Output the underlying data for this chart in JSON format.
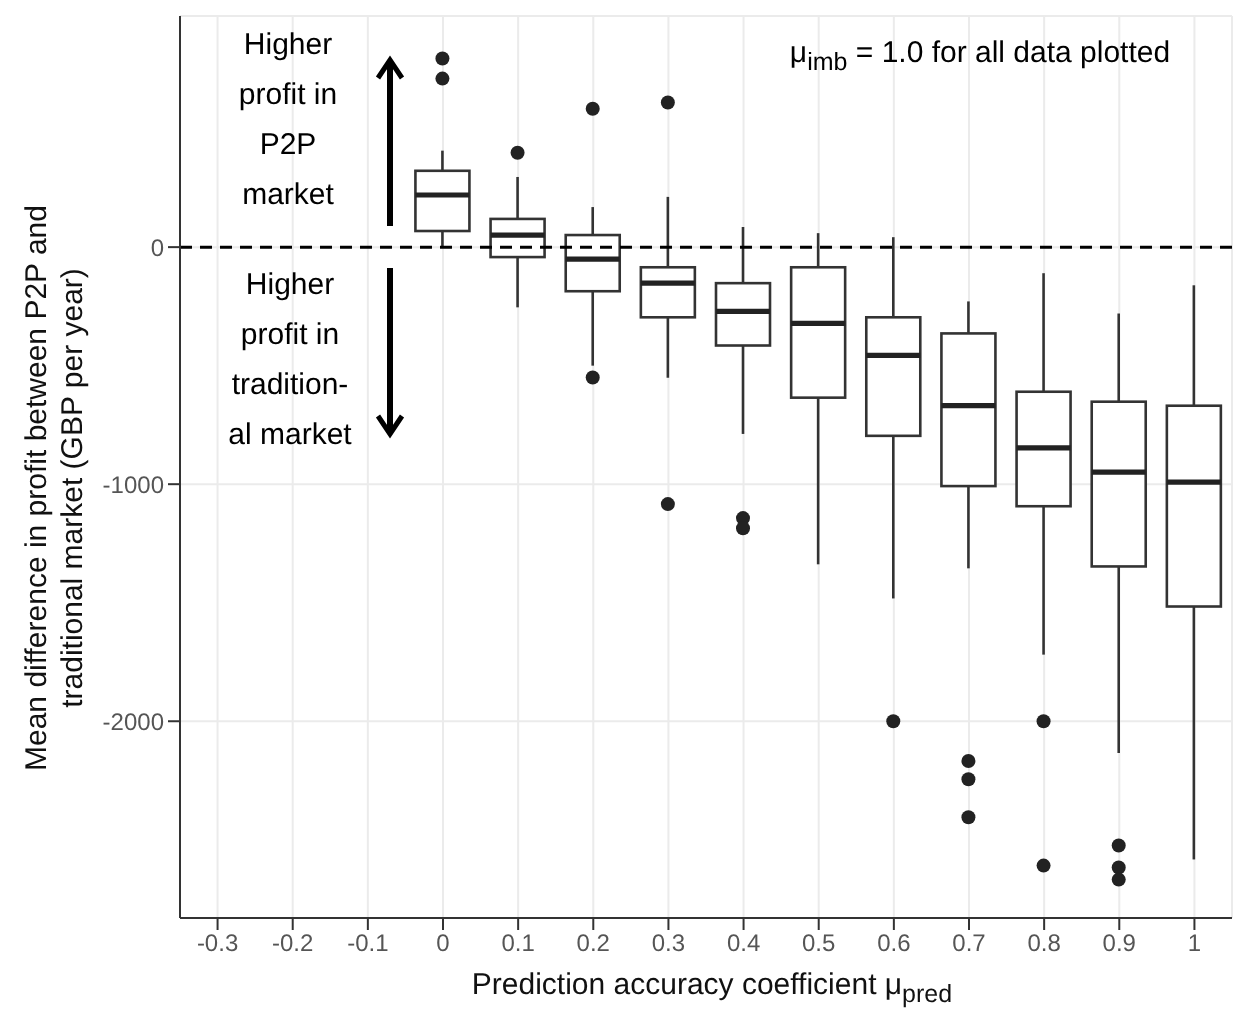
{
  "chart_data": {
    "type": "box",
    "xlabel": "Prediction accuracy coefficient μ$_{pred}$",
    "ylabel": "Mean difference in profit between P2P and traditional market (GBP per year)",
    "categories": [
      "-0.3",
      "-0.2",
      "-0.1",
      "0",
      "0.1",
      "0.2",
      "0.3",
      "0.4",
      "0.5",
      "0.6",
      "0.7",
      "0.8",
      "0.9",
      "1"
    ],
    "boxes": [
      null,
      null,
      null,
      {
        "low": 0,
        "q1": 68,
        "median": 220,
        "q3": 322,
        "high": 407,
        "outliers": [
          796,
          711
        ]
      },
      {
        "low": -254,
        "q1": -42,
        "median": 51,
        "q3": 119,
        "high": 296,
        "outliers": [
          398
        ]
      },
      {
        "low": -500,
        "q1": -186,
        "median": -51,
        "q3": 51,
        "high": 169,
        "outliers": [
          584,
          -550
        ]
      },
      {
        "low": -551,
        "q1": -296,
        "median": -152,
        "q3": -85,
        "high": 212,
        "outliers": [
          610,
          -1084
        ]
      },
      {
        "low": -788,
        "q1": -415,
        "median": -271,
        "q3": -152,
        "high": 85,
        "outliers": [
          -1143,
          -1186
        ]
      },
      {
        "low": -1338,
        "q1": -635,
        "median": -322,
        "q3": -85,
        "high": 59
      },
      {
        "low": -1482,
        "q1": -796,
        "median": -457,
        "q3": -296,
        "high": 42,
        "outliers": [
          -2000
        ]
      },
      {
        "low": -1355,
        "q1": -1008,
        "median": -669,
        "q3": -364,
        "high": -229,
        "outliers": [
          -2168,
          -2245,
          -2405
        ]
      },
      {
        "low": -1719,
        "q1": -1093,
        "median": -847,
        "q3": -610,
        "high": -110,
        "outliers": [
          -2000,
          -2609
        ]
      },
      {
        "low": -2134,
        "q1": -1347,
        "median": -949,
        "q3": -652,
        "high": -280,
        "outliers": [
          -2524,
          -2617,
          -2668
        ]
      },
      {
        "low": -2583,
        "q1": -1516,
        "median": -991,
        "q3": -669,
        "high": -161
      }
    ],
    "ylim": [
      -2830,
      975
    ],
    "yticks": [
      -2000,
      -1000,
      0
    ],
    "grid": true,
    "ref_lines": [
      {
        "axis": "y",
        "value": 0,
        "line_style": "dashed",
        "color": "#000000"
      }
    ],
    "annotations": [
      "Higher profit in P2P market",
      "Higher profit in tradition- al market",
      "μ$_{imb}$ = 1.0 for all data plotted"
    ]
  }
}
